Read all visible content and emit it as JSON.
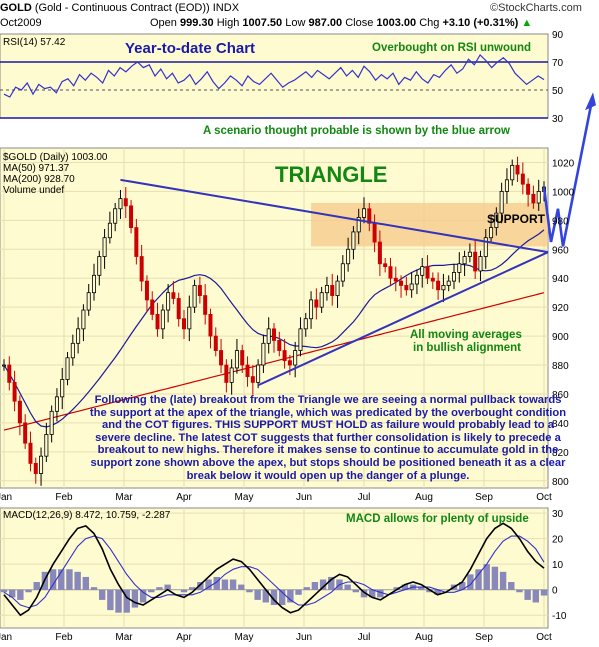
{
  "header": {
    "symbol": "GOLD",
    "title": "(Gold - Continuous Contract (EOD))",
    "exchange": "INDX",
    "date": "Oct2009",
    "open_label": "Open",
    "open": "999.30",
    "high_label": "High",
    "high": "1007.50",
    "low_label": "Low",
    "low": "987.00",
    "close_label": "Close",
    "close": "1003.00",
    "chg_label": "Chg",
    "chg": "+3.10 (+0.31%)",
    "chg_arrow": "up-arrow-icon",
    "watermark": "©StockCharts.com"
  },
  "annotations": {
    "ytd": "Year-to-date Chart",
    "rsi_note": "Overbought on RSI unwound",
    "scenario": "A scenario thought probable is shown by the blue arrow",
    "triangle": "TRIANGLE",
    "support": "SUPPORT",
    "ma_note_1": "All moving averages",
    "ma_note_2": "in bullish alignment",
    "macd_note": "MACD allows for plenty of upside",
    "commentary": "Following the (late) breakout from the Triangle we are seeing a normal pullback towards the support at the apex of the triangle, which was predicated by the overbought condition and the COT figures. THIS SUPPORT MUST HOLD as failure would probably lead to a severe decline. The latest COT suggests that further consolidation is likely to precede a breakout to new highs. Therefore it makes sense to continue to accumulate gold in the support zone shown above the apex, but stops should be positioned beneath it as a clear break below it would open up the danger of a plunge."
  },
  "colors": {
    "panel_bg": "#fffbd0",
    "rsi_line": "#3333cc",
    "trendline": "#3333bb",
    "support_zone": "#f5c88a",
    "ma50": "#1a1a9a",
    "ma200": "#cc0000",
    "up_candle": "#000000",
    "down_candle": "#cc0000",
    "annotation_blue": "#1a1aaa",
    "annotation_green": "#118811",
    "triangle_text": "#118811",
    "support_text": "#000000",
    "macd_line": "#000000",
    "macd_signal": "#3333cc",
    "macd_hist": "#8888bb"
  },
  "chart_data": [
    {
      "type": "line",
      "panel": "rsi",
      "title": "RSI(14) 57.42",
      "ylim": [
        30,
        90
      ],
      "y_ticks": [
        90,
        70,
        50,
        30
      ],
      "reference_lines": [
        70,
        50,
        30
      ],
      "series": [
        {
          "name": "RSI(14)",
          "values": [
            47,
            45,
            52,
            50,
            55,
            47,
            54,
            51,
            52,
            48,
            56,
            58,
            53,
            61,
            57,
            62,
            59,
            55,
            64,
            60,
            66,
            63,
            67,
            70,
            66,
            68,
            60,
            65,
            58,
            62,
            55,
            57,
            61,
            54,
            58,
            63,
            56,
            51,
            55,
            60,
            57,
            53,
            60,
            56,
            54,
            58,
            62,
            57,
            52,
            55,
            57,
            60,
            63,
            59,
            64,
            61,
            58,
            62,
            66,
            60,
            64,
            59,
            67,
            63,
            57,
            61,
            58,
            62,
            54,
            59,
            57,
            63,
            58,
            55,
            61,
            59,
            64,
            68,
            62,
            65,
            72,
            68,
            75,
            71,
            66,
            70,
            73,
            69,
            62,
            58,
            54,
            57,
            60,
            57.42
          ]
        }
      ]
    },
    {
      "type": "candlestick",
      "panel": "price",
      "title": "$GOLD (Daily) 1003.00",
      "legend": [
        "MA(50) 971.37",
        "MA(200) 928.70",
        "Volume undef"
      ],
      "ylim": [
        795,
        1030
      ],
      "y_ticks": [
        1020,
        1000,
        980,
        960,
        940,
        920,
        900,
        880,
        860,
        840,
        820,
        800
      ],
      "x_tick_labels": [
        "Jan",
        "Feb",
        "Mar",
        "Apr",
        "May",
        "Jun",
        "Jul",
        "Aug",
        "Sep",
        "Oct"
      ],
      "close_series": [
        880,
        868,
        855,
        840,
        826,
        812,
        805,
        817,
        832,
        848,
        858,
        870,
        885,
        895,
        905,
        918,
        930,
        942,
        955,
        968,
        978,
        988,
        995,
        990,
        975,
        955,
        938,
        925,
        915,
        905,
        918,
        930,
        926,
        912,
        905,
        920,
        935,
        928,
        915,
        900,
        890,
        880,
        868,
        878,
        890,
        880,
        872,
        868,
        880,
        895,
        905,
        897,
        890,
        883,
        880,
        890,
        905,
        912,
        925,
        920,
        930,
        935,
        928,
        938,
        950,
        960,
        972,
        982,
        988,
        978,
        965,
        950,
        948,
        940,
        938,
        935,
        932,
        936,
        942,
        948,
        940,
        938,
        932,
        935,
        938,
        944,
        950,
        955,
        958,
        945,
        955,
        968,
        975,
        985,
        1000,
        1008,
        1018,
        1012,
        1005,
        998,
        992,
        1000,
        1003
      ]
    },
    {
      "type": "line",
      "panel": "macd",
      "title": "MACD(12,26,9) 8.472, 10.759, -2.287",
      "ylim": [
        -15,
        32
      ],
      "y_ticks": [
        30,
        20,
        10,
        0,
        -10
      ],
      "series": [
        {
          "name": "MACD(12,26,9)",
          "values": [
            -2,
            -6,
            -10,
            -8,
            -3,
            4,
            10,
            15,
            20,
            24,
            25,
            22,
            16,
            8,
            2,
            -3,
            -5,
            -6,
            -4,
            -2,
            0,
            -2,
            -3,
            -1,
            2,
            5,
            8,
            10,
            12,
            11,
            8,
            4,
            0,
            -4,
            -7,
            -9,
            -8,
            -5,
            -2,
            1,
            4,
            6,
            5,
            2,
            -1,
            -3,
            -4,
            -2,
            0,
            2,
            3,
            2,
            0,
            -2,
            -1,
            1,
            3,
            8,
            14,
            20,
            24,
            26,
            24,
            20,
            15,
            11,
            8.472
          ]
        },
        {
          "name": "Signal",
          "values": [
            -1,
            -3,
            -6,
            -7,
            -6,
            -3,
            2,
            7,
            12,
            17,
            20,
            21,
            20,
            16,
            11,
            6,
            2,
            -1,
            -3,
            -3,
            -2,
            -2,
            -2,
            -2,
            -1,
            1,
            3,
            6,
            8,
            9,
            9,
            8,
            5,
            2,
            -1,
            -4,
            -6,
            -6,
            -5,
            -3,
            -1,
            2,
            3,
            3,
            2,
            0,
            -1,
            -2,
            -1,
            0,
            1,
            1,
            1,
            0,
            -1,
            -1,
            0,
            2,
            6,
            10,
            15,
            19,
            21,
            21,
            19,
            16,
            10.759
          ]
        },
        {
          "name": "Histogram",
          "values": [
            -1,
            -3,
            -4,
            -1,
            3,
            7,
            8,
            8,
            8,
            7,
            5,
            1,
            -4,
            -8,
            -9,
            -9,
            -7,
            -5,
            -1,
            1,
            2,
            0,
            -1,
            1,
            3,
            4,
            5,
            4,
            4,
            2,
            -1,
            -4,
            -5,
            -6,
            -6,
            -5,
            -2,
            1,
            3,
            4,
            5,
            4,
            2,
            -1,
            -3,
            -3,
            -3,
            0,
            1,
            2,
            2,
            1,
            -1,
            -2,
            0,
            2,
            3,
            6,
            8,
            10,
            9,
            7,
            3,
            -1,
            -4,
            -5,
            -2.287
          ]
        }
      ]
    }
  ]
}
